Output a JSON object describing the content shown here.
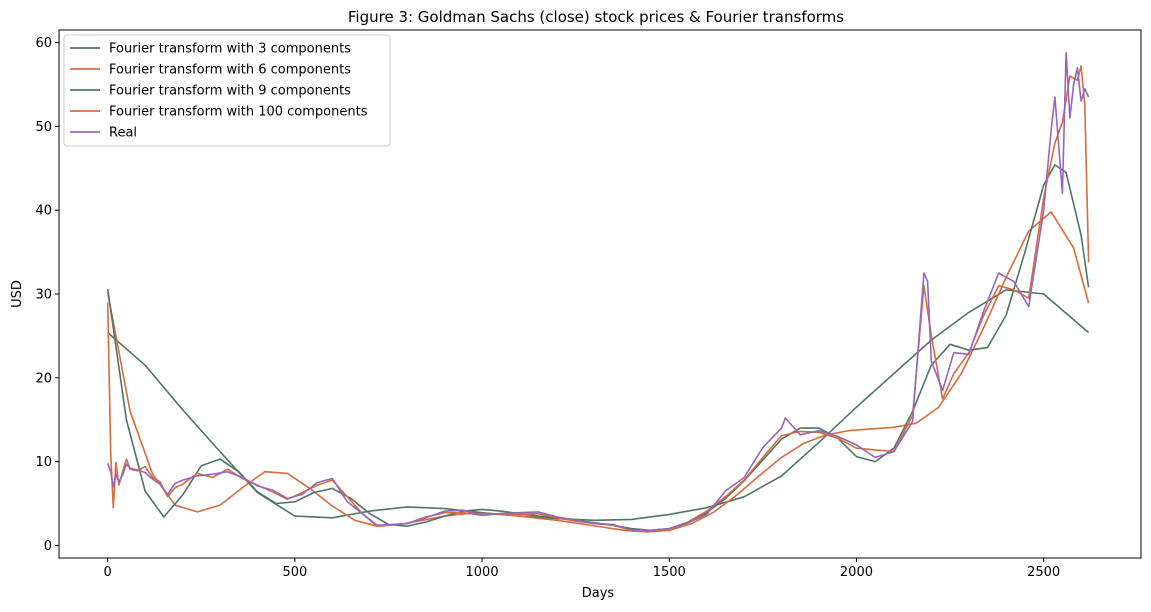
{
  "chart_data": {
    "type": "line",
    "title": "Figure 3: Goldman Sachs (close) stock prices & Fourier transforms",
    "xlabel": "Days",
    "ylabel": "USD",
    "xlim": [
      -130,
      2760
    ],
    "ylim": [
      -1.5,
      61.5
    ],
    "xticks": [
      0,
      500,
      1000,
      1500,
      2000,
      2500
    ],
    "yticks": [
      0,
      10,
      20,
      30,
      40,
      50,
      60
    ],
    "legend_position": "upper-left",
    "series": [
      {
        "name": "Fourier transform with 3 components",
        "color": "#4f7564",
        "x": [
          0,
          100,
          200,
          300,
          400,
          500,
          600,
          700,
          800,
          900,
          1000,
          1100,
          1200,
          1300,
          1400,
          1500,
          1600,
          1700,
          1800,
          1900,
          2000,
          2100,
          2200,
          2300,
          2400,
          2500,
          2620
        ],
        "y": [
          25.4,
          21.5,
          16.2,
          11.2,
          6.3,
          3.5,
          3.3,
          4.1,
          4.6,
          4.4,
          3.9,
          3.5,
          3.2,
          3.0,
          3.1,
          3.7,
          4.5,
          5.8,
          8.3,
          12.3,
          16.5,
          20.5,
          24.5,
          27.8,
          30.5,
          30.0,
          25.4
        ]
      },
      {
        "name": "Fourier transform with 6 components",
        "color": "#d86b3f",
        "x": [
          0,
          60,
          120,
          180,
          240,
          300,
          360,
          420,
          480,
          540,
          600,
          660,
          720,
          780,
          840,
          900,
          960,
          1020,
          1080,
          1140,
          1200,
          1260,
          1320,
          1380,
          1440,
          1500,
          1560,
          1620,
          1680,
          1740,
          1800,
          1860,
          1920,
          1980,
          2040,
          2100,
          2160,
          2220,
          2280,
          2340,
          2400,
          2460,
          2520,
          2580,
          2620
        ],
        "y": [
          30.2,
          16.0,
          8.5,
          4.8,
          4.0,
          4.8,
          6.9,
          8.8,
          8.6,
          6.8,
          4.7,
          3.0,
          2.3,
          2.5,
          3.0,
          3.5,
          3.8,
          3.8,
          3.6,
          3.3,
          3.0,
          2.6,
          2.2,
          1.8,
          1.6,
          1.8,
          2.6,
          4.0,
          6.0,
          8.3,
          10.5,
          12.2,
          13.2,
          13.7,
          13.9,
          14.1,
          14.6,
          16.5,
          20.5,
          26.0,
          32.0,
          37.5,
          39.8,
          35.5,
          28.9
        ]
      },
      {
        "name": "Fourier transform with 9 components",
        "color": "#4f7564",
        "x": [
          0,
          50,
          100,
          150,
          200,
          250,
          300,
          350,
          400,
          450,
          500,
          550,
          600,
          650,
          700,
          750,
          800,
          850,
          900,
          950,
          1000,
          1050,
          1100,
          1150,
          1200,
          1250,
          1300,
          1350,
          1400,
          1450,
          1500,
          1550,
          1600,
          1650,
          1700,
          1750,
          1800,
          1850,
          1900,
          1950,
          2000,
          2050,
          2100,
          2150,
          2200,
          2250,
          2300,
          2350,
          2400,
          2450,
          2500,
          2530,
          2560,
          2600,
          2620
        ],
        "y": [
          30.6,
          15.0,
          6.5,
          3.4,
          6.0,
          9.5,
          10.3,
          8.8,
          6.4,
          5.0,
          5.2,
          6.3,
          6.8,
          5.6,
          3.8,
          2.5,
          2.3,
          2.8,
          3.5,
          4.1,
          4.3,
          4.1,
          3.8,
          3.5,
          3.3,
          3.0,
          2.7,
          2.4,
          2.0,
          1.8,
          2.0,
          2.7,
          3.9,
          5.6,
          7.7,
          10.2,
          12.7,
          14.0,
          14.0,
          12.8,
          10.6,
          10.0,
          11.6,
          16.0,
          21.5,
          24.0,
          23.3,
          23.6,
          27.5,
          35.0,
          43.0,
          45.4,
          44.5,
          37.0,
          30.8
        ]
      },
      {
        "name": "Fourier transform with 100 components",
        "color": "#d86b3f",
        "x": [
          0,
          8,
          15,
          22,
          30,
          40,
          50,
          60,
          80,
          100,
          120,
          140,
          160,
          180,
          200,
          240,
          280,
          320,
          360,
          400,
          440,
          480,
          520,
          560,
          600,
          640,
          680,
          720,
          760,
          800,
          850,
          900,
          950,
          1000,
          1050,
          1100,
          1150,
          1200,
          1250,
          1300,
          1350,
          1400,
          1450,
          1500,
          1550,
          1600,
          1650,
          1700,
          1750,
          1800,
          1850,
          1900,
          1950,
          2000,
          2050,
          2100,
          2150,
          2180,
          2200,
          2230,
          2260,
          2300,
          2340,
          2380,
          2420,
          2460,
          2500,
          2530,
          2550,
          2570,
          2590,
          2600,
          2610,
          2620
        ],
        "y": [
          29.0,
          11.0,
          4.5,
          9.9,
          7.2,
          8.8,
          10.3,
          9.1,
          8.9,
          9.4,
          8.1,
          7.6,
          5.8,
          6.9,
          7.3,
          8.6,
          8.1,
          9.1,
          8.0,
          7.2,
          6.4,
          5.5,
          6.3,
          7.2,
          7.8,
          5.8,
          3.8,
          2.3,
          2.5,
          2.6,
          3.4,
          3.9,
          3.9,
          3.6,
          3.8,
          3.7,
          3.8,
          3.3,
          2.9,
          2.6,
          2.4,
          1.8,
          1.7,
          2.0,
          2.8,
          4.1,
          5.8,
          7.8,
          10.5,
          13.1,
          13.6,
          13.5,
          12.8,
          11.6,
          11.4,
          11.2,
          15.5,
          31.0,
          25.0,
          17.5,
          20.5,
          23.0,
          27.5,
          31.0,
          30.5,
          29.5,
          41.5,
          48.0,
          50.5,
          56.0,
          55.5,
          57.2,
          52.5,
          33.8
        ]
      },
      {
        "name": "Real",
        "color": "#9467bd",
        "x": [
          0,
          8,
          15,
          22,
          30,
          40,
          50,
          60,
          80,
          100,
          120,
          140,
          160,
          180,
          200,
          240,
          280,
          320,
          360,
          400,
          440,
          480,
          520,
          560,
          600,
          640,
          680,
          720,
          760,
          800,
          850,
          900,
          950,
          1000,
          1050,
          1100,
          1150,
          1200,
          1250,
          1300,
          1350,
          1400,
          1450,
          1500,
          1550,
          1600,
          1650,
          1700,
          1750,
          1800,
          1810,
          1850,
          1900,
          1950,
          2000,
          2050,
          2100,
          2150,
          2180,
          2190,
          2200,
          2230,
          2260,
          2300,
          2340,
          2380,
          2420,
          2460,
          2500,
          2520,
          2530,
          2550,
          2560,
          2570,
          2580,
          2590,
          2600,
          2610,
          2620
        ],
        "y": [
          9.8,
          8.8,
          7.0,
          8.5,
          7.6,
          8.4,
          9.7,
          9.2,
          9.0,
          8.7,
          7.9,
          7.3,
          6.1,
          7.4,
          7.8,
          8.3,
          8.5,
          8.8,
          8.1,
          7.1,
          6.6,
          5.6,
          6.1,
          7.5,
          8.0,
          5.2,
          3.8,
          2.4,
          2.5,
          2.6,
          3.3,
          4.1,
          4.2,
          3.6,
          3.8,
          3.9,
          4.0,
          3.4,
          3.0,
          2.6,
          2.5,
          1.8,
          1.8,
          2.0,
          2.7,
          3.7,
          6.5,
          8.1,
          11.7,
          14.0,
          15.2,
          13.2,
          13.7,
          13.0,
          12.0,
          10.5,
          11.2,
          14.8,
          32.5,
          31.5,
          22.0,
          18.5,
          23.0,
          22.8,
          28.0,
          32.5,
          31.5,
          28.5,
          40.0,
          49.5,
          53.5,
          42.0,
          58.8,
          51.0,
          55.0,
          57.0,
          53.0,
          54.5,
          53.5
        ]
      }
    ]
  }
}
